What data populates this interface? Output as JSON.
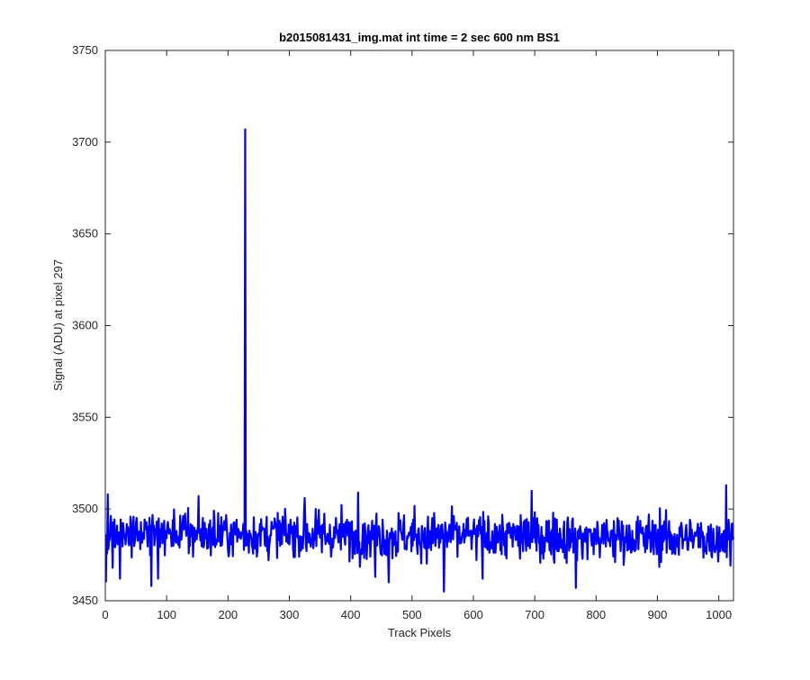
{
  "chart_data": {
    "type": "line",
    "title": "b2015081431_img.mat int time = 2 sec  600 nm BS1",
    "xlabel": "Track Pixels",
    "ylabel": "Signal (ADU) at pixel 297",
    "xlim": [
      0,
      1024
    ],
    "ylim": [
      3450,
      3750
    ],
    "xticks": [
      0,
      100,
      200,
      300,
      400,
      500,
      600,
      700,
      800,
      900,
      1000
    ],
    "yticks": [
      3450,
      3500,
      3550,
      3600,
      3650,
      3700,
      3750
    ],
    "grid": false,
    "legend": "none",
    "series": [
      {
        "color": "#0000ff",
        "generated_noise": {
          "n_points": 1024,
          "x_start": 1,
          "baseline_left": 3487,
          "baseline_right": 3484,
          "noise_amplitude": 9,
          "seed": 297
        },
        "points": [
          {
            "x": 1,
            "y": 3460
          },
          {
            "x": 4,
            "y": 3508
          },
          {
            "x": 12,
            "y": 3468
          },
          {
            "x": 24,
            "y": 3462
          },
          {
            "x": 75,
            "y": 3458
          },
          {
            "x": 86,
            "y": 3462
          },
          {
            "x": 152,
            "y": 3507
          },
          {
            "x": 228,
            "y": 3707
          },
          {
            "x": 229,
            "y": 3480
          },
          {
            "x": 325,
            "y": 3506
          },
          {
            "x": 412,
            "y": 3509
          },
          {
            "x": 440,
            "y": 3463
          },
          {
            "x": 462,
            "y": 3460
          },
          {
            "x": 552,
            "y": 3455
          },
          {
            "x": 615,
            "y": 3462
          },
          {
            "x": 695,
            "y": 3510
          },
          {
            "x": 767,
            "y": 3457
          },
          {
            "x": 1012,
            "y": 3513
          }
        ]
      }
    ]
  }
}
